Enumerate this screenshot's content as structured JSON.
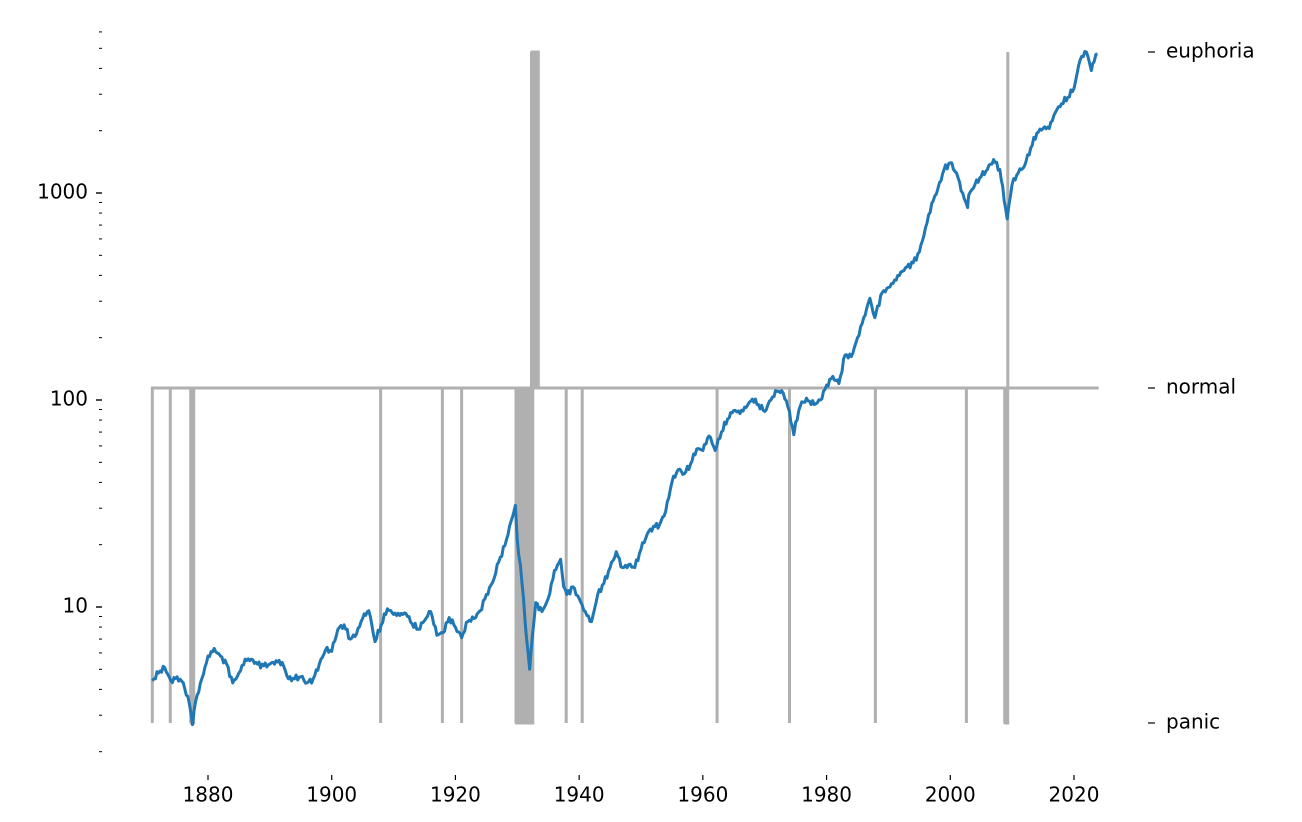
{
  "chart_data": {
    "type": "line",
    "title": "",
    "xlabel": "",
    "ylabel": "",
    "colors": {
      "price": "#1f77b4",
      "regime": "#b0b0b0"
    },
    "grid": false,
    "legend": "none",
    "x_axis": {
      "range": [
        1871,
        2024
      ],
      "ticks": [
        1880,
        1900,
        1920,
        1940,
        1960,
        1980,
        2000,
        2020
      ],
      "tick_labels": [
        "1880",
        "1900",
        "1920",
        "1940",
        "1960",
        "1980",
        "2000",
        "2020"
      ]
    },
    "y_axis_left": {
      "scale": "log",
      "range": [
        1.8,
        8000
      ],
      "major_ticks": [
        10,
        100,
        1000
      ],
      "major_tick_labels": [
        "10",
        "100",
        "1000"
      ]
    },
    "y_axis_right": {
      "categories": [
        "panic",
        "normal",
        "euphoria"
      ],
      "tick_labels": [
        "panic",
        "normal",
        "euphoria"
      ]
    },
    "series": [
      {
        "axis": "left",
        "x": [
          1871,
          1872,
          1873,
          1874,
          1875,
          1876,
          1877,
          1877.5,
          1878,
          1879,
          1880,
          1881,
          1882,
          1883,
          1884,
          1885,
          1886,
          1887,
          1888,
          1889,
          1890,
          1891,
          1892,
          1893,
          1894,
          1895,
          1896,
          1897,
          1898,
          1899,
          1900,
          1901,
          1902,
          1903,
          1904,
          1905,
          1906,
          1907,
          1908,
          1909,
          1910,
          1911,
          1912,
          1913,
          1914,
          1915,
          1916,
          1917,
          1918,
          1919,
          1920,
          1921,
          1922,
          1923,
          1924,
          1925,
          1926,
          1927,
          1928,
          1929,
          1929.7,
          1930,
          1930.5,
          1931,
          1931.5,
          1932,
          1932.4,
          1933,
          1934,
          1935,
          1936,
          1937,
          1937.5,
          1938,
          1939,
          1940,
          1941,
          1942,
          1943,
          1944,
          1945,
          1946,
          1947,
          1948,
          1949,
          1950,
          1951,
          1952,
          1953,
          1954,
          1955,
          1956,
          1957,
          1958,
          1959,
          1960,
          1961,
          1962,
          1963,
          1964,
          1965,
          1966,
          1967,
          1968,
          1969,
          1970,
          1971,
          1972,
          1973,
          1974,
          1974.7,
          1975,
          1976,
          1977,
          1978,
          1979,
          1980,
          1981,
          1982,
          1983,
          1984,
          1985,
          1986,
          1987,
          1987.8,
          1988,
          1989,
          1990,
          1991,
          1992,
          1993,
          1994,
          1995,
          1996,
          1997,
          1998,
          1999,
          2000,
          2001,
          2002,
          2002.8,
          2003,
          2004,
          2005,
          2006,
          2007,
          2008,
          2009.2,
          2010,
          2011,
          2012,
          2013,
          2014,
          2015,
          2016,
          2017,
          2018,
          2019,
          2020,
          2021,
          2022,
          2022.8,
          2023,
          2023.8
        ],
        "values": [
          4.4,
          4.8,
          5.1,
          4.4,
          4.6,
          4.3,
          3.4,
          2.7,
          3.5,
          4.5,
          5.8,
          6.3,
          5.8,
          5.3,
          4.3,
          4.8,
          5.6,
          5.6,
          5.3,
          5.2,
          5.3,
          5.5,
          5.4,
          4.5,
          4.5,
          4.6,
          4.3,
          4.5,
          5.3,
          6.2,
          6.1,
          7.8,
          8.2,
          7.0,
          7.4,
          8.8,
          9.6,
          6.8,
          8.2,
          9.8,
          9.2,
          9.1,
          9.3,
          8.3,
          7.8,
          8.6,
          9.5,
          7.3,
          7.5,
          8.9,
          8.0,
          7.1,
          8.5,
          8.8,
          9.6,
          11.5,
          13.1,
          16.5,
          19.8,
          26.0,
          31.0,
          21.0,
          16.0,
          11.0,
          7.0,
          5.0,
          7.0,
          10.5,
          9.5,
          11.0,
          15.0,
          17.0,
          12.5,
          11.5,
          12.5,
          11.0,
          9.5,
          8.5,
          11.5,
          13.0,
          15.5,
          18.5,
          15.5,
          16.0,
          15.5,
          19.0,
          22.5,
          24.5,
          25.0,
          29.0,
          40.0,
          46.0,
          44.0,
          49.0,
          58.0,
          57.0,
          67.0,
          57.0,
          70.0,
          81.0,
          89.0,
          86.0,
          92.0,
          101.0,
          95.0,
          88.0,
          100.0,
          110.0,
          108.0,
          88.0,
          68.0,
          78.0,
          98.0,
          99.0,
          95.0,
          100.0,
          118.0,
          130.0,
          120.0,
          165.0,
          162.0,
          200.0,
          250.0,
          310.0,
          250.0,
          265.0,
          330.0,
          350.0,
          380.0,
          415.0,
          440.0,
          460.0,
          520.0,
          680.0,
          890.0,
          1050.0,
          1300.0,
          1400.0,
          1250.0,
          1000.0,
          850.0,
          980.0,
          1100.0,
          1200.0,
          1300.0,
          1450.0,
          1300.0,
          750.0,
          1100.0,
          1250.0,
          1350.0,
          1650.0,
          1950.0,
          2050.0,
          2050.0,
          2450.0,
          2700.0,
          2900.0,
          3200.0,
          4400.0,
          4800.0,
          3900.0,
          4200.0,
          4700.0
        ]
      },
      {
        "axis": "right",
        "episodes": [
          {
            "regime": "panic",
            "start": 1871.0,
            "end": 1871.0
          },
          {
            "regime": "panic",
            "start": 1873.9,
            "end": 1873.9
          },
          {
            "regime": "panic",
            "start": 1877.2,
            "end": 1877.6
          },
          {
            "regime": "panic",
            "start": 1907.9,
            "end": 1907.9
          },
          {
            "regime": "panic",
            "start": 1917.9,
            "end": 1917.9
          },
          {
            "regime": "panic",
            "start": 1921.0,
            "end": 1921.0
          },
          {
            "regime": "panic",
            "start": 1929.8,
            "end": 1932.5
          },
          {
            "regime": "euphoria",
            "start": 1932.3,
            "end": 1933.4
          },
          {
            "regime": "panic",
            "start": 1937.9,
            "end": 1937.9
          },
          {
            "regime": "panic",
            "start": 1940.5,
            "end": 1940.5
          },
          {
            "regime": "panic",
            "start": 1962.3,
            "end": 1962.3
          },
          {
            "regime": "panic",
            "start": 1974.0,
            "end": 1974.0
          },
          {
            "regime": "panic",
            "start": 1987.9,
            "end": 1987.9
          },
          {
            "regime": "panic",
            "start": 2002.6,
            "end": 2002.6
          },
          {
            "regime": "panic",
            "start": 2008.8,
            "end": 2009.2
          },
          {
            "regime": "euphoria",
            "start": 2009.3,
            "end": 2009.3
          }
        ]
      }
    ]
  }
}
